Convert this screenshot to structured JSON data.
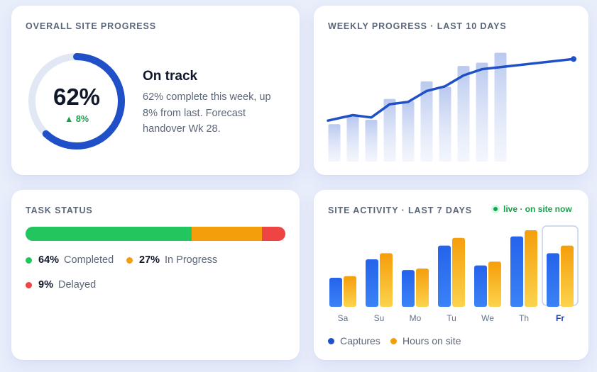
{
  "colors": {
    "accent_blue": "#2050c8",
    "track": "#e2e8f3",
    "green": "#22c55e",
    "orange": "#f59e0b",
    "red": "#ef4444",
    "captures": "#2563eb",
    "hours": "#fbbf24"
  },
  "overall": {
    "title": "OVERALL SITE PROGRESS",
    "percent": 62,
    "percent_label": "62%",
    "delta_label": "▲ 8%",
    "status": "On track",
    "description": "62% complete this week, up 8% from last. Forecast handover Wk 28."
  },
  "weekly": {
    "title": "WEEKLY PROGRESS · LAST 10 DAYS",
    "chart_data": {
      "type": "bar",
      "bars": [
        34,
        41,
        38,
        57,
        55,
        73,
        68,
        87,
        90,
        99
      ],
      "line": [
        18,
        25,
        22,
        39,
        42,
        56,
        62,
        76,
        84,
        97
      ],
      "ylim": [
        0,
        100
      ]
    }
  },
  "tasks": {
    "title": "TASK STATUS",
    "segments": [
      {
        "name": "Completed",
        "pct": 64,
        "pct_label": "64%",
        "color": "#22c55e"
      },
      {
        "name": "In Progress",
        "pct": 27,
        "pct_label": "27%",
        "color": "#f59e0b"
      },
      {
        "name": "Delayed",
        "pct": 9,
        "pct_label": "9%",
        "color": "#ef4444"
      }
    ]
  },
  "activity": {
    "title": "SITE ACTIVITY · LAST 7 DAYS",
    "live_label": "live · on site now",
    "legend": {
      "captures": "Captures",
      "hours": "Hours on site"
    },
    "chart_data": {
      "type": "bar",
      "categories": [
        "Sa",
        "Su",
        "Mo",
        "Tu",
        "We",
        "Th",
        "Fr"
      ],
      "selected": "Fr",
      "series": [
        {
          "name": "Captures",
          "values": [
            38,
            62,
            48,
            80,
            54,
            92,
            70
          ]
        },
        {
          "name": "Hours on site",
          "values": [
            40,
            70,
            50,
            90,
            59,
            100,
            80
          ]
        }
      ],
      "ylim": [
        0,
        100
      ]
    }
  }
}
